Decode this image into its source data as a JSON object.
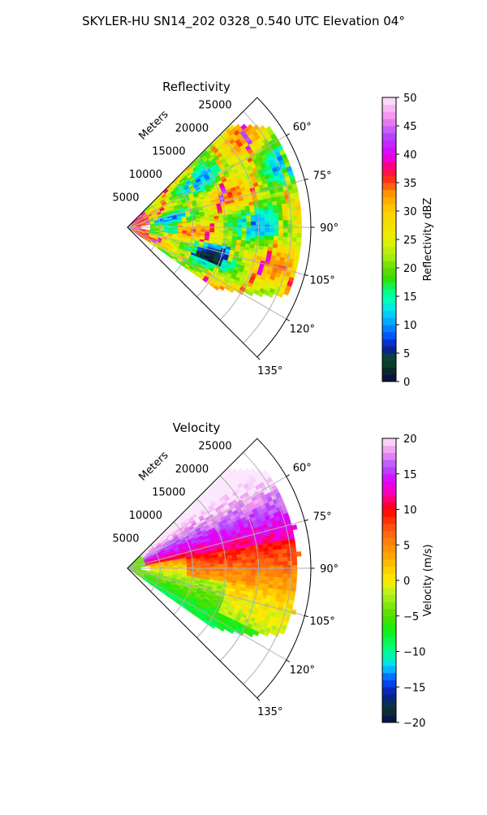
{
  "figure": {
    "title": "SKYLER-HU  SN14_202  0328_0.540 UTC Elevation 04°"
  },
  "chart_data": [
    {
      "type": "heatmap",
      "title": "Reflectivity",
      "radial_axis_label": "Meters",
      "range_ticks": [
        5000,
        10000,
        15000,
        20000,
        25000
      ],
      "range_tick_labels": [
        "5000",
        "10000",
        "15000",
        "20000",
        "25000"
      ],
      "range_limits_m": [
        0,
        28000
      ],
      "azimuth_limits_deg": [
        45,
        135
      ],
      "azimuth_tick_labels": [
        "60°",
        "75°",
        "90°",
        "105°",
        "120°",
        "135°"
      ],
      "grid": true,
      "colorbar": {
        "label": "Reflectivity dBZ",
        "min": 0,
        "max": 50,
        "ticks": [
          0,
          5,
          10,
          15,
          20,
          25,
          30,
          35,
          40,
          45,
          50
        ],
        "tick_labels": [
          "0",
          "5",
          "10",
          "15",
          "20",
          "25",
          "30",
          "35",
          "40",
          "45",
          "50"
        ],
        "stops": [
          {
            "value": 0,
            "color": "#0a0a50"
          },
          {
            "value": 2,
            "color": "#0b2a2a"
          },
          {
            "value": 4,
            "color": "#0e4a2a"
          },
          {
            "value": 6,
            "color": "#0a1aa0"
          },
          {
            "value": 8,
            "color": "#0050ff"
          },
          {
            "value": 10,
            "color": "#0098ff"
          },
          {
            "value": 12,
            "color": "#00d0ff"
          },
          {
            "value": 14,
            "color": "#00ffc8"
          },
          {
            "value": 16,
            "color": "#00ff80"
          },
          {
            "value": 18,
            "color": "#30e000"
          },
          {
            "value": 20,
            "color": "#66dd00"
          },
          {
            "value": 22,
            "color": "#a8ee10"
          },
          {
            "value": 25,
            "color": "#e8f000"
          },
          {
            "value": 30,
            "color": "#ffd000"
          },
          {
            "value": 33,
            "color": "#ff9a00"
          },
          {
            "value": 36,
            "color": "#ff2020"
          },
          {
            "value": 38,
            "color": "#ff0080"
          },
          {
            "value": 40,
            "color": "#e000ff"
          },
          {
            "value": 43,
            "color": "#b040ff"
          },
          {
            "value": 46,
            "color": "#f080f0"
          },
          {
            "value": 50,
            "color": "#fce8fc"
          }
        ]
      },
      "field_description_values_dBZ": {
        "typical_range": [
          18,
          32
        ],
        "embedded_bands_max": 40
      }
    },
    {
      "type": "heatmap",
      "title": "Velocity",
      "radial_axis_label": "Meters",
      "range_ticks": [
        5000,
        10000,
        15000,
        20000,
        25000
      ],
      "range_tick_labels": [
        "5000",
        "10000",
        "15000",
        "20000",
        "25000"
      ],
      "range_limits_m": [
        0,
        28000
      ],
      "azimuth_limits_deg": [
        45,
        135
      ],
      "azimuth_tick_labels": [
        "60°",
        "75°",
        "90°",
        "105°",
        "120°",
        "135°"
      ],
      "grid": true,
      "colorbar": {
        "label": "Velocity (m/s)",
        "min": -20,
        "max": 20,
        "ticks": [
          -20,
          -15,
          -10,
          -5,
          0,
          5,
          10,
          15,
          20
        ],
        "tick_labels": [
          "−20",
          "−15",
          "−10",
          "−5",
          "0",
          "5",
          "10",
          "15",
          "20"
        ],
        "stops": [
          {
            "value": -20,
            "color": "#0a0a50"
          },
          {
            "value": -18,
            "color": "#0b3a2a"
          },
          {
            "value": -16,
            "color": "#0a1aa0"
          },
          {
            "value": -14,
            "color": "#0050ff"
          },
          {
            "value": -12,
            "color": "#00d8ff"
          },
          {
            "value": -10,
            "color": "#00ff90"
          },
          {
            "value": -7,
            "color": "#10f010"
          },
          {
            "value": -5,
            "color": "#50dd00"
          },
          {
            "value": -2,
            "color": "#b0f020"
          },
          {
            "value": 0,
            "color": "#ffee00"
          },
          {
            "value": 3,
            "color": "#ffb000"
          },
          {
            "value": 7,
            "color": "#ff6010"
          },
          {
            "value": 10,
            "color": "#ff0000"
          },
          {
            "value": 12,
            "color": "#ff00a0"
          },
          {
            "value": 14,
            "color": "#e000ff"
          },
          {
            "value": 16,
            "color": "#b050ff"
          },
          {
            "value": 18,
            "color": "#f090f0"
          },
          {
            "value": 20,
            "color": "#fce8fc"
          }
        ]
      },
      "field_description_values_ms": {
        "north_sector": 13,
        "east_center": 1,
        "southwest": -6
      }
    }
  ]
}
